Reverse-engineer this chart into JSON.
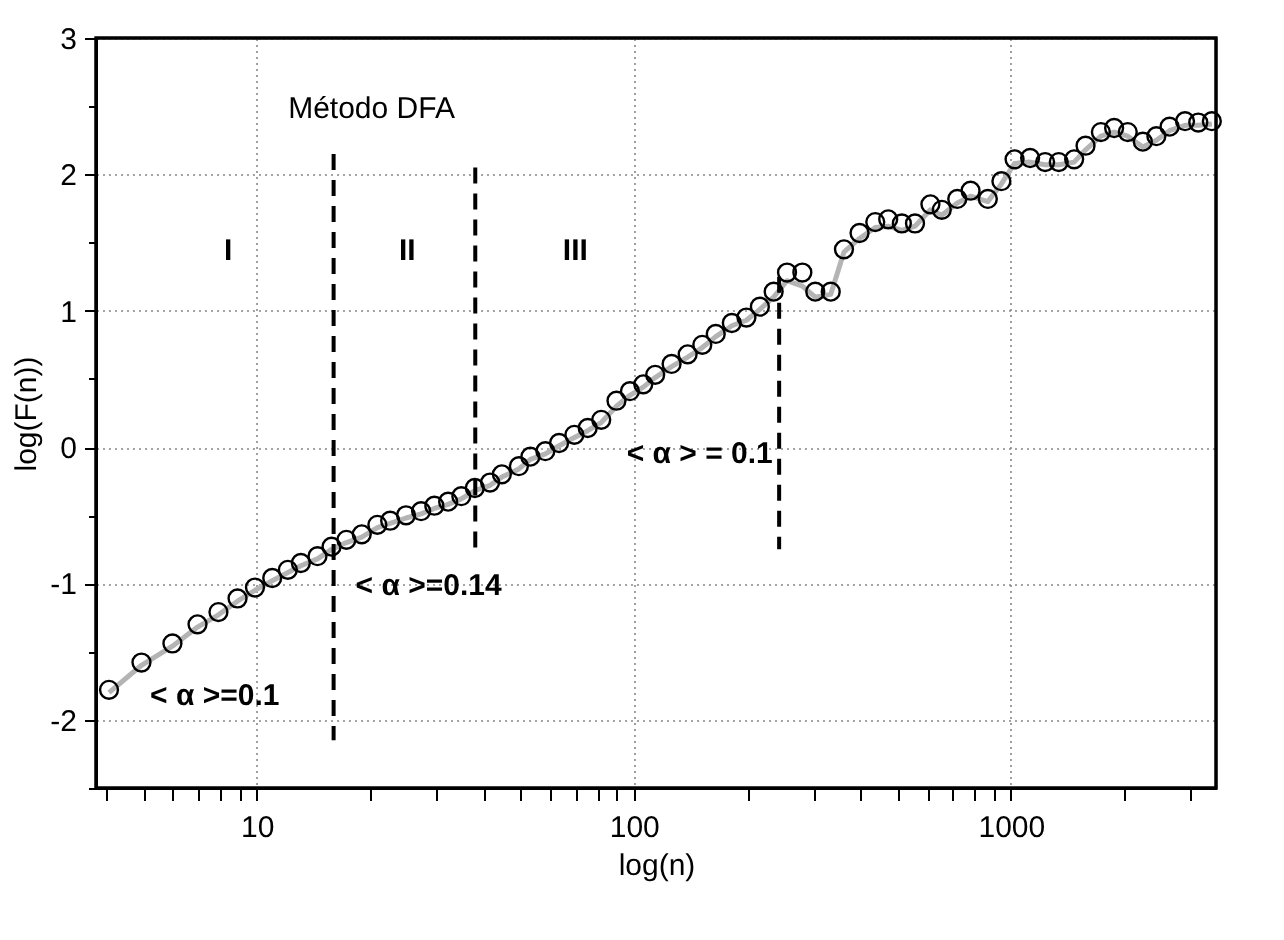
{
  "chart_data": {
    "type": "scatter",
    "xlabel": "log(n)",
    "ylabel": "log(F(n))",
    "log": "x",
    "xlim": [
      3.75,
      3500
    ],
    "ylim": [
      -2.5,
      3
    ],
    "xticks": [
      {
        "value": 4,
        "label": null
      },
      {
        "value": 5,
        "label": null
      },
      {
        "value": 6,
        "label": null
      },
      {
        "value": 7,
        "label": null
      },
      {
        "value": 8,
        "label": null
      },
      {
        "value": 9,
        "label": null
      },
      10,
      {
        "value": 20,
        "label": null
      },
      {
        "value": 30,
        "label": null
      },
      {
        "value": 40,
        "label": null
      },
      {
        "value": 50,
        "label": null
      },
      {
        "value": 60,
        "label": null
      },
      {
        "value": 70,
        "label": null
      },
      {
        "value": 80,
        "label": null
      },
      {
        "value": 90,
        "label": null
      },
      100,
      {
        "value": 200,
        "label": null
      },
      {
        "value": 300,
        "label": null
      },
      {
        "value": 400,
        "label": null
      },
      {
        "value": 500,
        "label": null
      },
      {
        "value": 600,
        "label": null
      },
      {
        "value": 700,
        "label": null
      },
      {
        "value": 800,
        "label": null
      },
      {
        "value": 900,
        "label": null
      },
      1000,
      {
        "value": 2000,
        "label": null
      },
      {
        "value": 3000,
        "label": null
      }
    ],
    "yticks": [
      {
        "value": -2.5,
        "label": null
      },
      -2,
      {
        "value": -1.5,
        "label": null
      },
      -1,
      {
        "value": -0.5,
        "label": null
      },
      0,
      {
        "value": 0.5,
        "label": null
      },
      1,
      {
        "value": 1.5,
        "label": null
      },
      2,
      {
        "value": 2.5,
        "label": null
      },
      3
    ],
    "grid": true,
    "x": [
      4.06,
      4.95,
      5.98,
      6.97,
      7.92,
      8.9,
      9.9,
      11.0,
      12.1,
      13.1,
      14.5,
      15.8,
      17.3,
      19.0,
      20.9,
      22.6,
      24.9,
      27.3,
      29.6,
      32.2,
      34.9,
      37.9,
      41.6,
      44.7,
      49.6,
      53.2,
      58.3,
      63.4,
      69.6,
      75.5,
      82.0,
      90.0,
      97.7,
      106,
      114,
      126,
      139,
      152,
      165,
      182,
      199,
      216,
      235,
      255,
      280,
      303,
      333,
      361,
      397,
      437,
      473,
      514,
      557,
      612,
      656,
      721,
      782,
      869,
      944,
      1023,
      1125,
      1233,
      1340,
      1472,
      1578,
      1733,
      1879,
      2042,
      2239,
      2432,
      2636,
      2897,
      3141,
      3412
    ],
    "series": [
      {
        "type": "line",
        "color": "#b4b4b4",
        "values": [
          -1.8,
          -1.6,
          -1.46,
          -1.32,
          -1.23,
          -1.13,
          -1.05,
          -0.98,
          -0.92,
          -0.87,
          -0.82,
          -0.75,
          -0.7,
          -0.66,
          -0.59,
          -0.56,
          -0.52,
          -0.49,
          -0.45,
          -0.42,
          -0.38,
          -0.32,
          -0.28,
          -0.22,
          -0.16,
          -0.09,
          -0.05,
          0.01,
          0.07,
          0.12,
          0.18,
          0.3,
          0.38,
          0.44,
          0.51,
          0.59,
          0.66,
          0.73,
          0.81,
          0.89,
          0.93,
          1.01,
          1.1,
          1.22,
          1.18,
          1.1,
          1.12,
          1.43,
          1.53,
          1.61,
          1.62,
          1.59,
          1.62,
          1.74,
          1.7,
          1.79,
          1.84,
          1.8,
          1.93,
          2.08,
          2.09,
          2.07,
          2.07,
          2.09,
          2.18,
          2.28,
          2.31,
          2.28,
          2.2,
          2.25,
          2.32,
          2.36,
          2.36,
          2.37
        ]
      },
      {
        "color": "#000000",
        "marker": "circle",
        "values": [
          -1.78,
          -1.58,
          -1.44,
          -1.3,
          -1.21,
          -1.11,
          -1.03,
          -0.96,
          -0.9,
          -0.85,
          -0.8,
          -0.73,
          -0.68,
          -0.64,
          -0.57,
          -0.54,
          -0.5,
          -0.47,
          -0.43,
          -0.4,
          -0.36,
          -0.3,
          -0.26,
          -0.2,
          -0.14,
          -0.07,
          -0.03,
          0.03,
          0.09,
          0.14,
          0.2,
          0.34,
          0.41,
          0.46,
          0.53,
          0.61,
          0.68,
          0.75,
          0.83,
          0.91,
          0.95,
          1.03,
          1.14,
          1.28,
          1.28,
          1.14,
          1.14,
          1.45,
          1.57,
          1.65,
          1.67,
          1.64,
          1.64,
          1.78,
          1.74,
          1.82,
          1.88,
          1.82,
          1.95,
          2.11,
          2.12,
          2.09,
          2.09,
          2.11,
          2.21,
          2.31,
          2.34,
          2.31,
          2.24,
          2.28,
          2.35,
          2.39,
          2.38,
          2.39
        ]
      },
      {
        "type": "line",
        "line_style": "dashed",
        "color": "#000000",
        "x": [
          16,
          16
        ],
        "values": [
          2.15,
          -2.15
        ]
      },
      {
        "type": "line",
        "line_style": "dashed",
        "color": "#000000",
        "x": [
          38,
          38
        ],
        "values": [
          2.05,
          -0.75
        ]
      },
      {
        "type": "line",
        "line_style": "dashed",
        "color": "#000000",
        "x": [
          243,
          243
        ],
        "values": [
          1.25,
          -0.75
        ]
      }
    ],
    "annotations": [
      "Método DFA",
      "I",
      "II",
      "III",
      "< α >=0.1",
      "< α >=0.14",
      "< α > = 0.1"
    ]
  }
}
